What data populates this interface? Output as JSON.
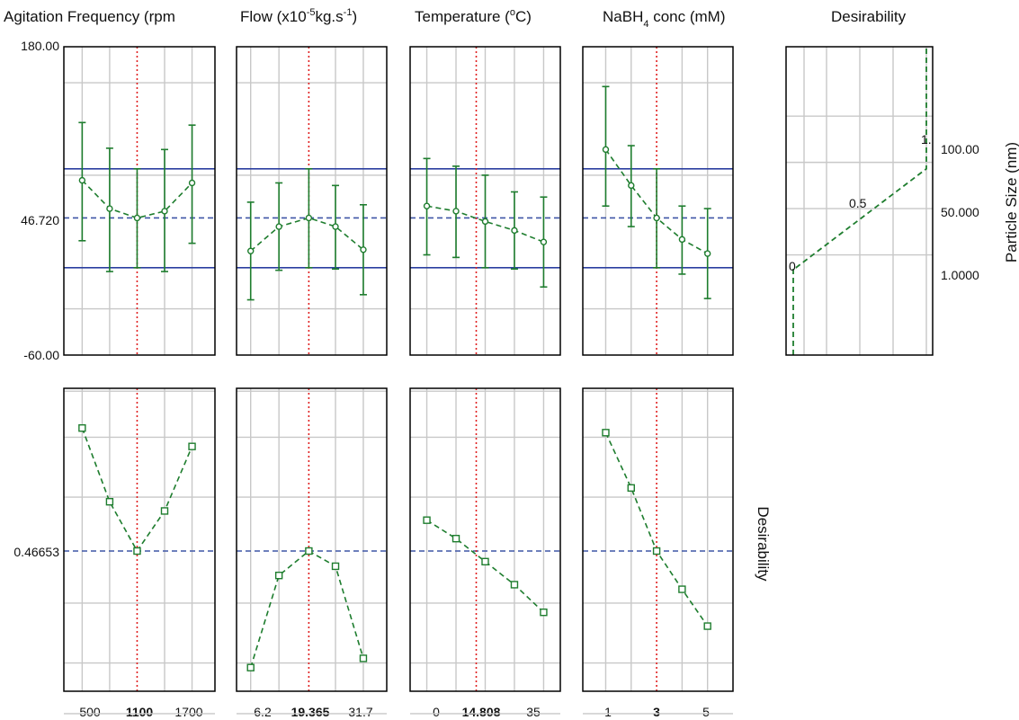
{
  "chart_data": {
    "type": "line",
    "title": "",
    "factor_titles": [
      "Agitation Frequency (rpm",
      "Flow  (x10",
      "Temperature (",
      "NaBH",
      "Desirability"
    ],
    "flow_title_parts": {
      "base": "Flow  (x10",
      "sup1": "-5",
      "mid": "kg.s",
      "sup2": "-1",
      "end": ")"
    },
    "temp_title_parts": {
      "base": "Temperature (",
      "sup": "o",
      "end": "C)"
    },
    "nabh_title_parts": {
      "base": "NaBH",
      "sub": "4",
      "end": " conc (mM)"
    },
    "response_axis_label": "Particle Size (nm)",
    "desirability_axis_label": "Desirability",
    "response_ylim": [
      -60,
      180
    ],
    "response_ytick_labels": [
      "180.00",
      "46.720",
      "-60.00"
    ],
    "desirability_ytick_label": "0.46653",
    "current_response": 46.72,
    "current_desirability": 0.46653,
    "spec_limits": [
      8,
      85
    ],
    "factors": [
      {
        "name": "Agitation Frequency (rpm)",
        "levels": [
          500,
          800,
          1100,
          1400,
          1700
        ],
        "tick_labels": [
          "500",
          "1100",
          "1700"
        ],
        "current_label": "1100",
        "current": 1100,
        "xlim": [
          300,
          1950
        ],
        "response": [
          76,
          54,
          46.72,
          52,
          74
        ],
        "ci_low": [
          29,
          5,
          8,
          5,
          27
        ],
        "ci_high": [
          121,
          101,
          85,
          100,
          119
        ],
        "desirability": [
          0.6,
          0.52,
          0.46653,
          0.51,
          0.58
        ]
      },
      {
        "name": "Flow (x10-5 kg.s-1)",
        "levels": [
          6.2,
          12.6,
          19.365,
          25.4,
          31.7
        ],
        "tick_labels": [
          "6.2",
          "19.365",
          "31.7"
        ],
        "current_label": "19.365",
        "current": 19.365,
        "xlim": [
          3.0,
          37.0
        ],
        "response": [
          21,
          40,
          46.72,
          40,
          22
        ],
        "ci_low": [
          -17,
          6,
          8,
          7,
          -13
        ],
        "ci_high": [
          59,
          74,
          85,
          72,
          57
        ],
        "desirability": [
          0.34,
          0.44,
          0.46653,
          0.45,
          0.35
        ]
      },
      {
        "name": "Temperature (oC)",
        "levels": [
          0,
          8.75,
          17.5,
          26.25,
          35
        ],
        "tick_labels": [
          "0",
          "14.808",
          "35"
        ],
        "current_label": "14.808",
        "current": 14.808,
        "xlim": [
          -5,
          40
        ],
        "response": [
          56,
          52,
          44,
          37,
          28
        ],
        "ci_low": [
          18,
          16,
          8,
          7,
          -7
        ],
        "ci_high": [
          93,
          87,
          80,
          67,
          63
        ],
        "desirability": [
          0.5,
          0.48,
          0.455,
          0.43,
          0.4
        ]
      },
      {
        "name": "NaBH4 conc (mM)",
        "levels": [
          1,
          2,
          3,
          4,
          5
        ],
        "tick_labels": [
          "1",
          "3",
          "5"
        ],
        "current_label": "3",
        "current": 3,
        "xlim": [
          0.1,
          6.0
        ],
        "response": [
          100,
          72,
          46.72,
          30,
          19
        ],
        "ci_low": [
          56,
          40,
          8,
          3,
          -16
        ],
        "ci_high": [
          149,
          103,
          85,
          56,
          54
        ],
        "desirability": [
          0.595,
          0.535,
          0.46653,
          0.425,
          0.385
        ]
      }
    ],
    "desirability_function": {
      "x": [
        0,
        0,
        0.02,
        1,
        1
      ],
      "y": [
        -60,
        8,
        8,
        85,
        180
      ],
      "labels": [
        "0",
        "0.5",
        "1."
      ],
      "tick_labels": [
        "100.00",
        "50.000",
        "1.0000"
      ]
    }
  },
  "colors": {
    "series": "#1e7d2e",
    "reference": "#3f56a6",
    "limit": "#2b3fa0",
    "current": "#e02020",
    "grid": "#c8c8c8"
  }
}
